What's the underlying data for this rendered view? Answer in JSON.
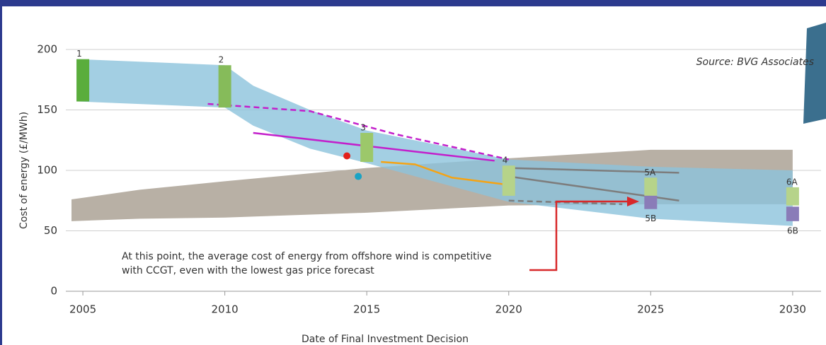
{
  "chart_data": {
    "type": "line",
    "y_label": "Cost of energy (£/MWh)",
    "x_label": "Date of Final Investment Decision",
    "source": "Source: BVG Associates",
    "annotation": [
      "At this point, the average cost of energy from offshore wind is competitive",
      "with CCGT, even with the lowest gas price forecast"
    ],
    "xlim": [
      2004.4,
      2031
    ],
    "xticks": [
      2005,
      2010,
      2015,
      2020,
      2025,
      2030
    ],
    "ylim": [
      0,
      200
    ],
    "yticks": [
      0,
      50,
      100,
      150,
      200
    ],
    "grid": true,
    "bands": [
      {
        "color": "#b8b0a5",
        "x": [
          2004.6,
          2007,
          2010,
          2015,
          2020,
          2025,
          2030
        ],
        "upper": [
          76,
          84,
          91,
          102,
          110,
          117,
          117
        ],
        "lower": [
          58,
          60,
          61,
          65,
          71,
          72,
          72
        ]
      },
      {
        "color": "#8cc3dc",
        "x": [
          2004.8,
          2010,
          2011,
          2013,
          2015,
          2020,
          2025,
          2030
        ],
        "upper": [
          192,
          187,
          170,
          150,
          133,
          109,
          103,
          100
        ],
        "lower": [
          157,
          152,
          137,
          118,
          106,
          74,
          60,
          54
        ]
      }
    ],
    "ranges": [
      {
        "label": "1",
        "x": 2005,
        "low": 157,
        "high": 192,
        "color": "#5aad3c"
      },
      {
        "label": "2",
        "x": 2010,
        "low": 152,
        "high": 187,
        "color": "#86bb5a"
      },
      {
        "label": "3",
        "x": 2015,
        "low": 107,
        "high": 131,
        "color": "#9cc86a"
      },
      {
        "label": "4",
        "x": 2020,
        "low": 79,
        "high": 104,
        "color": "#b6d38a"
      },
      {
        "label": "5A",
        "x": 2025,
        "low": 79,
        "high": 94,
        "color": "#b6d38a"
      },
      {
        "label": "5B",
        "x": 2025,
        "low": 68,
        "high": 79,
        "color": "#8a7cb8"
      },
      {
        "label": "6A",
        "x": 2030,
        "low": 71,
        "high": 86,
        "color": "#b6d38a"
      },
      {
        "label": "6B",
        "x": 2030,
        "low": 58,
        "high": 70,
        "color": "#8a7cb8"
      }
    ],
    "series": [
      {
        "color": "#c31fcb",
        "dash": true,
        "x": [
          2009.4,
          2013,
          2016,
          2020
        ],
        "values": [
          155,
          149,
          130,
          109
        ]
      },
      {
        "color": "#c31fcb",
        "dash": false,
        "x": [
          2011,
          2019.5
        ],
        "values": [
          131,
          108
        ]
      },
      {
        "color": "#f5a314",
        "dash": false,
        "x": [
          2015.5,
          2016.7,
          2018,
          2020
        ],
        "values": [
          107,
          105,
          94,
          88
        ]
      },
      {
        "color": "#7d7d7d",
        "dash": false,
        "x": [
          2020,
          2026
        ],
        "values": [
          102,
          98
        ]
      },
      {
        "color": "#7d7d7d",
        "dash": false,
        "x": [
          2020,
          2026
        ],
        "values": [
          95,
          75
        ]
      },
      {
        "color": "#7d7d7d",
        "dash": true,
        "x": [
          2020,
          2024
        ],
        "values": [
          75,
          72
        ]
      }
    ],
    "points": [
      {
        "color": "#e3201b",
        "x": 2014.3,
        "value": 112
      },
      {
        "color": "#1aa3c4",
        "x": 2014.7,
        "value": 95
      }
    ]
  }
}
